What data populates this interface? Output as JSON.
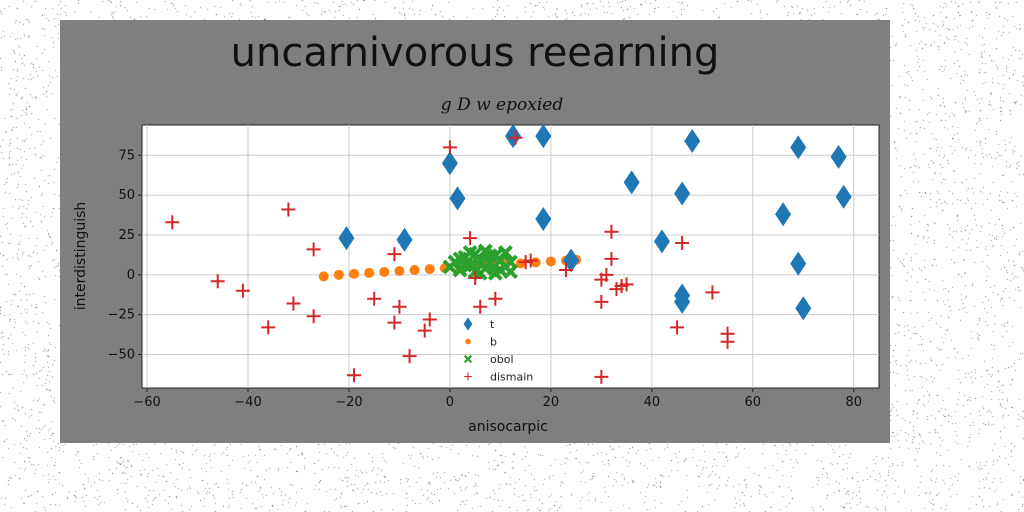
{
  "chart_data": {
    "type": "scatter",
    "title": "uncarnivorous reearning",
    "subtitle": "g D w epoxied",
    "xlabel": "anisocarpic",
    "ylabel": "interdistinguish",
    "xlim": [
      -61,
      85
    ],
    "ylim": [
      -71,
      94
    ],
    "x_ticks": [
      -60,
      -40,
      -20,
      0,
      20,
      40,
      60,
      80
    ],
    "y_ticks": [
      -50,
      -25,
      0,
      25,
      50,
      75
    ],
    "grid": true,
    "legend_position": "lower-center",
    "series": [
      {
        "name": "t",
        "marker": "diamond",
        "color": "#1f77b4",
        "points": [
          [
            -20.5,
            23
          ],
          [
            -9,
            22
          ],
          [
            0,
            70
          ],
          [
            1.5,
            48
          ],
          [
            12.5,
            87
          ],
          [
            18.5,
            87
          ],
          [
            18.5,
            35
          ],
          [
            24,
            9
          ],
          [
            36,
            58
          ],
          [
            42,
            21
          ],
          [
            46,
            51
          ],
          [
            46,
            -13
          ],
          [
            46,
            -17
          ],
          [
            48,
            84
          ],
          [
            66,
            38
          ],
          [
            69,
            80
          ],
          [
            69,
            7
          ],
          [
            70,
            -21
          ],
          [
            77,
            74
          ],
          [
            78,
            49
          ]
        ]
      },
      {
        "name": "b",
        "marker": "circle",
        "color": "#ff7f0e",
        "points": [
          [
            -25,
            -1
          ],
          [
            -22,
            0
          ],
          [
            -19,
            0.6
          ],
          [
            -16,
            1.2
          ],
          [
            -13,
            1.8
          ],
          [
            -10,
            2.4
          ],
          [
            -7,
            3
          ],
          [
            -4,
            3.6
          ],
          [
            -1,
            4.2
          ],
          [
            2,
            4.8
          ],
          [
            5,
            5.4
          ],
          [
            8,
            6
          ],
          [
            11,
            6.6
          ],
          [
            14,
            7.2
          ],
          [
            17,
            7.8
          ],
          [
            20,
            8.4
          ],
          [
            23,
            9
          ],
          [
            25,
            9.5
          ]
        ]
      },
      {
        "name": "obol",
        "marker": "x",
        "color": "#2ca02c",
        "points": [
          [
            0,
            5
          ],
          [
            1,
            8
          ],
          [
            2,
            3
          ],
          [
            3,
            11
          ],
          [
            4,
            6
          ],
          [
            5,
            2
          ],
          [
            5,
            13
          ],
          [
            6,
            9
          ],
          [
            7,
            4
          ],
          [
            7,
            15
          ],
          [
            8,
            7
          ],
          [
            9,
            12
          ],
          [
            9,
            1
          ],
          [
            10,
            9
          ],
          [
            11,
            5
          ],
          [
            11,
            14
          ],
          [
            12,
            8
          ],
          [
            12,
            2
          ],
          [
            2,
            10
          ],
          [
            4,
            14
          ],
          [
            6,
            1
          ],
          [
            8,
            12
          ],
          [
            10,
            3
          ],
          [
            3,
            6
          ]
        ]
      },
      {
        "name": "dismain",
        "marker": "plus",
        "color": "#d62728",
        "points": [
          [
            -55,
            33
          ],
          [
            -46,
            -4
          ],
          [
            -41,
            -10
          ],
          [
            -36,
            -33
          ],
          [
            -32,
            41
          ],
          [
            -31,
            -18
          ],
          [
            -27,
            16
          ],
          [
            -27,
            -26
          ],
          [
            -19,
            -63
          ],
          [
            -15,
            -15
          ],
          [
            -11,
            13
          ],
          [
            -11,
            -30
          ],
          [
            -10,
            -20
          ],
          [
            -8,
            -51
          ],
          [
            -5,
            -35
          ],
          [
            -4,
            -28
          ],
          [
            0,
            80
          ],
          [
            4,
            23
          ],
          [
            5,
            -2
          ],
          [
            6,
            -20
          ],
          [
            9,
            -15
          ],
          [
            13,
            86
          ],
          [
            15,
            8
          ],
          [
            16,
            9
          ],
          [
            23,
            3
          ],
          [
            30,
            -3
          ],
          [
            30,
            -17
          ],
          [
            30,
            -64
          ],
          [
            31,
            0
          ],
          [
            32,
            27
          ],
          [
            32,
            10
          ],
          [
            33,
            -9
          ],
          [
            34,
            -7
          ],
          [
            35,
            -6
          ],
          [
            45,
            -33
          ],
          [
            46,
            20
          ],
          [
            52,
            -11
          ],
          [
            55,
            -37
          ],
          [
            55,
            -42
          ]
        ]
      }
    ]
  }
}
